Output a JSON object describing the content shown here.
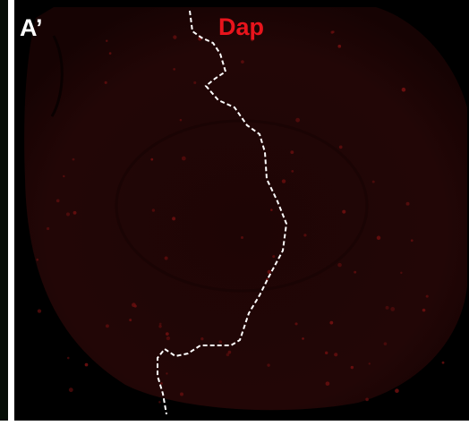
{
  "panel": {
    "label": "A’",
    "stain": "Dap"
  }
}
